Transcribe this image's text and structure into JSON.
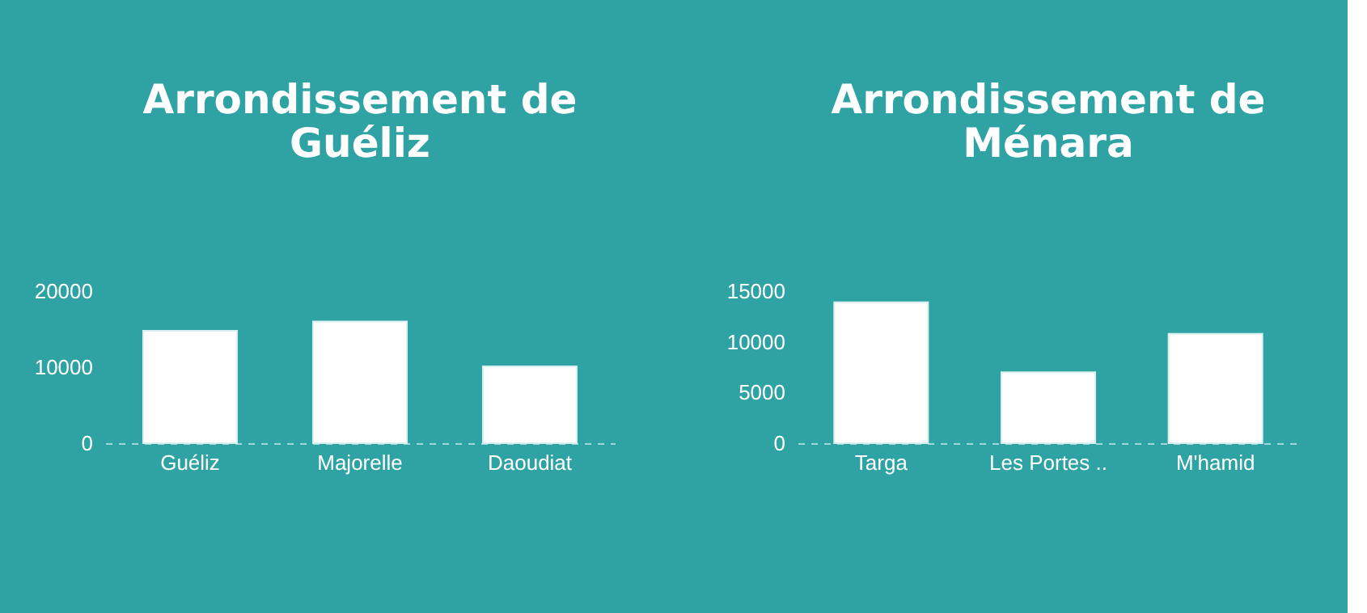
{
  "chart_data": [
    {
      "type": "bar",
      "title": "Arrondissement de\nGuéliz",
      "categories": [
        "Guéliz",
        "Majorelle",
        "Daoudiat"
      ],
      "values": [
        14800,
        16000,
        10100
      ],
      "color": "#ffffff",
      "ylim": [
        0,
        20000
      ],
      "yticks": [
        0,
        10000,
        20000
      ],
      "grid": false
    },
    {
      "type": "bar",
      "title": "Arrondissement de\nMénara",
      "categories": [
        "Targa",
        "Les Portes ..",
        "M'hamid"
      ],
      "values": [
        13900,
        7000,
        10800
      ],
      "color": "#ffffff",
      "ylim": [
        0,
        15000
      ],
      "yticks": [
        0,
        5000,
        10000,
        15000
      ],
      "grid": false
    }
  ]
}
